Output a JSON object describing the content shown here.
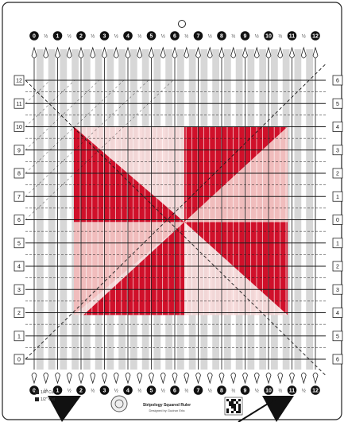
{
  "ruler": {
    "top_numbers": [
      "0",
      "1",
      "2",
      "3",
      "4",
      "5",
      "6",
      "7",
      "8",
      "9",
      "10",
      "11",
      "12"
    ],
    "bottom_numbers": [
      "0",
      "1",
      "2",
      "3",
      "4",
      "5",
      "6",
      "7",
      "8",
      "9",
      "10",
      "11",
      "12"
    ],
    "left_numbers": [
      "12",
      "11",
      "10",
      "9",
      "8",
      "7",
      "6",
      "5",
      "4",
      "3",
      "2",
      "1",
      "0"
    ],
    "right_numbers": [
      "6",
      "5",
      "4",
      "3",
      "2",
      "1",
      "0",
      "1",
      "2",
      "3",
      "4",
      "5",
      "6"
    ],
    "half_mark": "½",
    "product_name": "Stripology Squared Ruler",
    "designer_line": "Designed by Gudrun Erla",
    "cut_labels": [
      "1/4\" Cut",
      "1/2\" Cut"
    ],
    "colors": {
      "red": "#d0102a",
      "pink": "#efb9b9",
      "light_pink": "#f6d6d6",
      "gray_strip": "#c9c9c9",
      "line": "#1a1a1a"
    }
  }
}
